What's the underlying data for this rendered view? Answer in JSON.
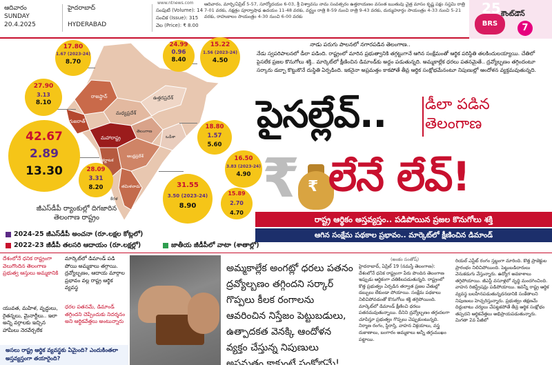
{
  "masthead": {
    "day_telugu": "ఆదివారం",
    "day": "SUNDAY",
    "date": "20.4.2025",
    "city_telugu": "హైదరాబాద్",
    "city": "HYDERABAD",
    "volume": "సంపుటి (Volume): 14",
    "issue": "సంచిక (Issue): 315",
    "price": "వెల (Price): ₹ 8.00",
    "website": "www.ntnews.com",
    "notice": "ఆదివారం, మార్చి/ఏప్రిల్ 5-57, సూర్యోదయం 6-03, శ్రీ విశ్వావసు నామ సంవత్సరం ఉత్తరాయణం వసంత ఋతువు చైత్ర మాసం కృష్ణ పక్షం సప్తమి రాత్రి 7-01 వరకు, నక్షత్రం పూర్వాషాఢ ఉదయం 11-48 వరకు, వర్జ్యం రాత్రి 8-59 నుంచి రాత్రి 9-43 వరకు, దుర్ముహూర్తం సాయంత్రం 4-33 నుంచి 5-21 వరకు, రాహుకాలం సాయంత్రం 4-30 నుంచి 6-00 వరకు",
    "countdown_label": "కౌంట్‌డౌన్",
    "countdown_value": "7",
    "party_logo": "BRS",
    "party_number": "25"
  },
  "map": {
    "states": [
      {
        "label": "రాజస్థాన్"
      },
      {
        "label": "గుజరాత్"
      },
      {
        "label": "మధ్యప్రదేశ్"
      },
      {
        "label": "మహారాష్ట్ర"
      },
      {
        "label": "తెలంగాణ"
      },
      {
        "label": "ఒడిశా"
      },
      {
        "label": "తమిళనాడు"
      },
      {
        "label": "కర్ణాటక"
      },
      {
        "label": "ఆంధ్రప్రదేశ్"
      },
      {
        "label": "ఉత్తరప్రదేశ్"
      },
      {
        "label": "కేరళ"
      }
    ],
    "circles": [
      {
        "a": "17.80",
        "b": "1.67 (2023-24)",
        "c": "8.70"
      },
      {
        "a": "24.99",
        "b": "0.96",
        "c": "8.40"
      },
      {
        "a": "15.22",
        "b": "1.56 (2023-24)",
        "c": "4.50"
      },
      {
        "a": "27.90",
        "b": "3.13",
        "c": "8.10"
      },
      {
        "a": "42.67",
        "b": "2.89",
        "c": "13.30"
      },
      {
        "a": "18.80",
        "b": "1.57",
        "c": "5.60"
      },
      {
        "a": "16.50",
        "b": "3.83 (2023-24)",
        "c": "4.90"
      },
      {
        "a": "28.09",
        "b": "3.31",
        "c": "8.20"
      },
      {
        "a": "31.55",
        "b": "3.50 (2023-24)",
        "c": "8.90"
      },
      {
        "a": "15.89",
        "b": "2.70",
        "c": "4.70"
      }
    ],
    "caption": "జీఎస్‌డీపీ ర్యాంకుల్లో దిగజారిన తెలంగాణ రాష్ట్రం"
  },
  "legend": {
    "item1": "2024-25 జీఎస్‌డీపీ అంచనా (రూ.లక్షల కోట్లలో)",
    "item2": "2022-23 జీడీపీ తలసరి ఆదాయం (రూ.లక్షల్లో)",
    "item3": "జాతీయ జీడీపీలో వాటా (శాతాల్లో)",
    "color1": "#5b2a86",
    "color2": "#c8102e",
    "color3": "#2e9e4f"
  },
  "intro": {
    "kicker": "నాడు పరుగు పాలనలో నగారపడిన తెలంగాణ..",
    "text": "నేడు స్వపరిపాలనలో డీలా పడింది. రాష్ట్రంలో మారిన ప్రభుత్వానికి తగ్గట్టుగానే ఆగిన సంక్షేమంతో ఆర్థిక పరిస్థితి తలకిందులయ్యాయి. చేతిలో పైసలేక ప్రజల కొనుగోలు శక్తి.. మార్కెట్‌లో క్షీణించిన డిమాండ్‌కు అద్దం పడుతున్నది. అమ్మకాల్లేక ధరలు పతనమైతే.. ద్రవ్యోల్బణం తగ్గిందంటూ సర్కారు డబ్బా కొట్టుకొనే దుస్థితి ఏర్పడింది. ఇకనైనా అప్రమత్తం కాకపోతే తీవ్ర ఆర్థిక సంక్షోభమేనంటూ నిపుణుల్లో ఆందోళన వ్యక్తమవుతున్నది."
  },
  "headline": {
    "line1": "పైసల్లేవ్..",
    "deck_line1": "డీలా పడిన",
    "deck_line2": "తెలంగాణ",
    "rupee": "₹",
    "line2": "లేనే లేవ్!",
    "bag_symbol": "₹"
  },
  "bands": {
    "band1": "రాష్ట్ర ఆర్థికం అస్తవ్యస్తం.. పడిపోయిన ప్రజల కొనుగోలు శక్తి",
    "band2": "ఆగిన సంక్షేమ పథకాల ప్రభావం.. మార్కెట్‌లో క్షీణించిన డిమాండ్"
  },
  "bottom": {
    "col1_red": "దేశంలోనే ధనిక రాష్ట్రంగా వెలుగొందిన తెలంగాణ ప్రభుత్వ ఆస్తులు అమ్మకానికి",
    "col1_black": "యువత, మహిళ, వృద్ధులు, రైతన్నలు, మైనార్టీలు.. ఇలా అన్ని వర్గాలకు ఇచ్చిన హామీలు నెరవేర్చలేక",
    "col2_black": "మార్కెట్‌లో డిమాండ్ పడి పోయి అమ్మకాలు తగ్గాయి. ద్రవ్యోల్బణం, ఆదాయ మార్గాల ప్రభావం వల్ల రాష్ట్ర ఆర్థిక వ్యవస్థ",
    "col2_red": "ధరల పతనమే, డిమాండ్ తగ్గిందని చెప్పేందుకు నిదర్శనం అని ఆర్థికవేత్తలు అంటున్నారు",
    "pullquote": "అసలు రాష్ట్ర ఆర్థిక వ్యవస్థకు ఏమైంది? ఎందుకింతలా అస్తవ్యస్తంగా తయారైంది?",
    "summary": "అమ్మకాల్లేక అంగట్లో ధరలు పతనం ద్రవ్యోల్బణం తగ్గిందని సర్కార్ గొప్పలు కీలక రంగాలను ఆవరించిన నిస్తేజం పెట్టుబడులు, ఉత్పాదకత వెనక్కి ఆందోళన వ్యక్తం చేస్తున్న నిపుణులు అప్రమత్తం కాకుంటే సంక్షోభమే!",
    "byline": "(అంకం సంతోష్)",
    "body1": "హైదరాబాద్, ఏప్రిల్ 19 (నమస్తే తెలంగాణ): దేశంలోనే ధనిక రాష్ట్రంగా పేరు పొందిన తెలంగాణ ఇప్పుడు ఆర్థికంగా చతికిలపడుతున్నది. రాష్ట్రంలో కొత్త ప్రభుత్వం ఏర్పడిన తర్వాత ప్రజల చేతుల్లో డబ్బులు లేకుండా పోయాయి. సంక్షేమ పథకాలు నిలిచిపోవడంతో కొనుగోలు శక్తి తగ్గిపోయింది. మార్కెట్‌లో డిమాండ్ క్షీణించి ధరలు పతనమవుతున్నాయి. దీనిని ద్రవ్యోల్బణం తగ్గుదలగా చూపిస్తూ ప్రభుత్వం గొప్పలు చెప్పుకుంటున్నది. నిర్మాణ రంగం, స్థిరాస్తి, వాహన విక్రయాలు, వస్త్ర దుకాణాలు, బంగారం అమ్మకాలు అన్నీ తగ్గుముఖం పట్టాయి.",
    "body2": "రియల్ ఎస్టేట్ రంగం స్తబ్ధంగా మారింది. కొత్త ప్రాజెక్టుల ప్రారంభం నిలిచిపోయింది. పెట్టుబడిదారులు వెనుకడుగు వేస్తున్నారు. ఉద్యోగ అవకాశాలు తగ్గిపోయాయి. జీఎస్టీ వసూళ్లలో వృద్ధి మందగించింది. వాహన రిజిస్ట్రేషన్లు పడిపోయాయి. ఇవన్నీ రాష్ట్ర ఆర్థిక వ్యవస్థ బలహీనపడుతున్నదనడానికి సంకేతాలని నిపుణులు హెచ్చరిస్తున్నారు. ప్రభుత్వం తక్షణమే దిద్దుబాటు చర్యలు చేపట్టకపోతే తీవ్ర ఆర్థిక సంక్షోభం తప్పదని ఆర్థికవేత్తలు అభిప్రాయపడుతున్నారు. మిగతా 2వ పేజీలో"
  }
}
